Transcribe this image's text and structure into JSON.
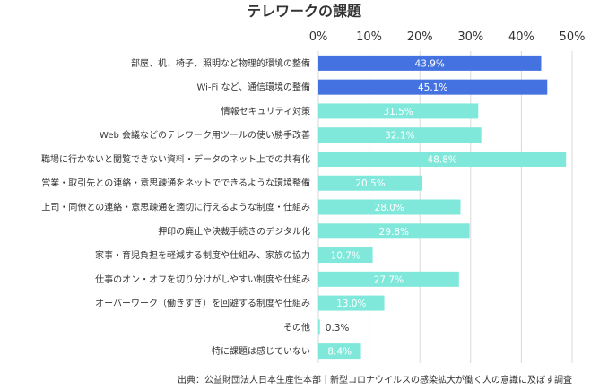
{
  "chart_data": {
    "type": "bar",
    "orientation": "horizontal",
    "title": "テレワークの課題",
    "xlim": [
      0,
      50
    ],
    "ticks": [
      "0%",
      "10%",
      "20%",
      "30%",
      "40%",
      "50%"
    ],
    "tick_values": [
      0,
      10,
      20,
      30,
      40,
      50
    ],
    "categories": [
      "部屋、机、椅子、照明など物理的環境の整備",
      "Wi-Fi など、通信環境の整備",
      "情報セキュリティ対策",
      "Web 会議などのテレワーク用ツールの使い勝手改善",
      "職場に行かないと閲覧できない資料・データのネット上での共有化",
      "営業・取引先との連絡・意思疎通をネットでできるような環境整備",
      "上司・同僚との連絡・意思疎通を適切に行えるような制度・仕組み",
      "押印の廃止や決裁手続きのデジタル化",
      "家事・育児負担を軽減する制度や仕組み、家族の協力",
      "仕事のオン・オフを切り分けがしやすい制度や仕組み",
      "オーバーワーク（働きすぎ）を回避する制度や仕組み",
      "その他",
      "特に課題は感じていない"
    ],
    "values": [
      43.9,
      45.1,
      31.5,
      32.1,
      48.8,
      20.5,
      28.0,
      29.8,
      10.7,
      27.7,
      13.0,
      0.3,
      8.4
    ],
    "value_labels": [
      "43.9%",
      "45.1%",
      "31.5%",
      "32.1%",
      "48.8%",
      "20.5%",
      "28.0%",
      "29.8%",
      "10.7%",
      "27.7%",
      "13.0%",
      "0.3%",
      "8.4%"
    ],
    "highlight_index": [
      0,
      1
    ],
    "colors": {
      "highlight": "#4472E0",
      "normal": "#7FE8DA",
      "grid": "#D9D9D9",
      "text": "#333333"
    },
    "grid": true
  },
  "source": "出典：公益財団法人日本生産性本部｜新型コロナウイルスの感染拡大が働く人の意識に及ぼす調査"
}
